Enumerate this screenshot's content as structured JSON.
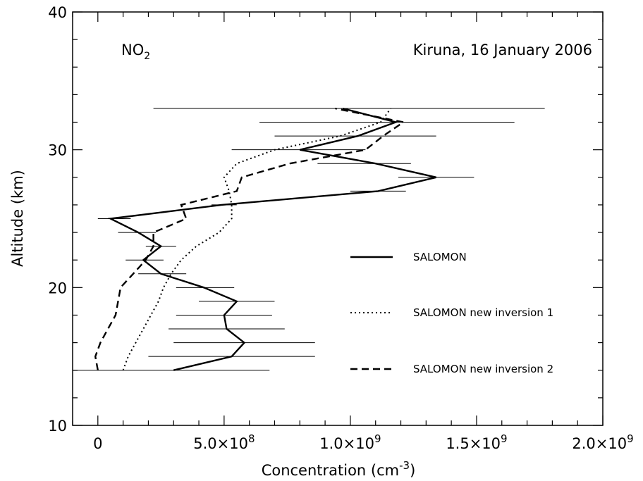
{
  "chart_data": {
    "type": "line",
    "title": "",
    "xlabel": "Concentration (cm",
    "xlabel_sup": "-3",
    "xlabel_close": ")",
    "ylabel": "Altitude (km)",
    "xlim": [
      -100000000,
      2000000000
    ],
    "ylim": [
      10,
      40
    ],
    "x_ticks": [
      {
        "value": 0,
        "label": "0"
      },
      {
        "value": 500000000,
        "mant": "5.0×10",
        "exp": "8"
      },
      {
        "value": 1000000000,
        "mant": "1.0×10",
        "exp": "9"
      },
      {
        "value": 1500000000,
        "mant": "1.5×10",
        "exp": "9"
      },
      {
        "value": 2000000000,
        "mant": "2.0×10",
        "exp": "9"
      }
    ],
    "y_ticks": [
      10,
      20,
      30,
      40
    ],
    "annotations": {
      "species": "NO",
      "species_sub": "2",
      "site": "Kiruna, 16 January 2006"
    },
    "legend": {
      "placement": "right",
      "entries": [
        {
          "name": "SALOMON",
          "style": "solid"
        },
        {
          "name": "SALOMON new inversion 1",
          "style": "dotted"
        },
        {
          "name": "SALOMON new inversion 2",
          "style": "dashed"
        }
      ]
    },
    "series": [
      {
        "name": "SALOMON",
        "style": "solid",
        "error_bars": true,
        "points": [
          {
            "y": 14,
            "x": 300000000,
            "xmin": -100000000,
            "xmax": 680000000
          },
          {
            "y": 15,
            "x": 530000000,
            "xmin": 200000000,
            "xmax": 860000000
          },
          {
            "y": 16,
            "x": 580000000,
            "xmin": 300000000,
            "xmax": 860000000
          },
          {
            "y": 17,
            "x": 510000000,
            "xmin": 280000000,
            "xmax": 740000000
          },
          {
            "y": 18,
            "x": 500000000,
            "xmin": 310000000,
            "xmax": 690000000
          },
          {
            "y": 19,
            "x": 550000000,
            "xmin": 400000000,
            "xmax": 700000000
          },
          {
            "y": 20,
            "x": 420000000,
            "xmin": 310000000,
            "xmax": 540000000
          },
          {
            "y": 21,
            "x": 250000000,
            "xmin": 160000000,
            "xmax": 350000000
          },
          {
            "y": 22,
            "x": 180000000,
            "xmin": 110000000,
            "xmax": 260000000
          },
          {
            "y": 23,
            "x": 250000000,
            "xmin": 190000000,
            "xmax": 310000000
          },
          {
            "y": 24,
            "x": 160000000,
            "xmin": 80000000,
            "xmax": 230000000
          },
          {
            "y": 25,
            "x": 50000000,
            "xmin": 0,
            "xmax": 130000000
          },
          {
            "y": 26,
            "x": 490000000,
            "xmin": 450000000,
            "xmax": 550000000
          },
          {
            "y": 27,
            "x": 1110000000,
            "xmin": 1000000000,
            "xmax": 1220000000
          },
          {
            "y": 28,
            "x": 1340000000,
            "xmin": 1190000000,
            "xmax": 1490000000
          },
          {
            "y": 29,
            "x": 1100000000,
            "xmin": 870000000,
            "xmax": 1240000000
          },
          {
            "y": 30,
            "x": 800000000,
            "xmin": 530000000,
            "xmax": 1060000000
          },
          {
            "y": 31,
            "x": 1030000000,
            "xmin": 700000000,
            "xmax": 1340000000
          },
          {
            "y": 32,
            "x": 1180000000,
            "xmin": 640000000,
            "xmax": 1650000000
          },
          {
            "y": 33,
            "x": 970000000,
            "xmin": 220000000,
            "xmax": 1770000000
          }
        ]
      },
      {
        "name": "SALOMON new inversion 1",
        "style": "dotted",
        "points": [
          {
            "y": 14,
            "x": 100000000
          },
          {
            "y": 15,
            "x": 120000000
          },
          {
            "y": 16,
            "x": 150000000
          },
          {
            "y": 17,
            "x": 180000000
          },
          {
            "y": 18,
            "x": 210000000
          },
          {
            "y": 19,
            "x": 240000000
          },
          {
            "y": 20,
            "x": 260000000
          },
          {
            "y": 21,
            "x": 290000000
          },
          {
            "y": 22,
            "x": 330000000
          },
          {
            "y": 23,
            "x": 390000000
          },
          {
            "y": 24,
            "x": 480000000
          },
          {
            "y": 25,
            "x": 530000000
          },
          {
            "y": 26,
            "x": 530000000
          },
          {
            "y": 27,
            "x": 520000000
          },
          {
            "y": 28,
            "x": 500000000
          },
          {
            "y": 29,
            "x": 550000000
          },
          {
            "y": 30,
            "x": 700000000
          },
          {
            "y": 31,
            "x": 960000000
          },
          {
            "y": 32,
            "x": 1120000000
          },
          {
            "y": 33,
            "x": 1160000000
          }
        ]
      },
      {
        "name": "SALOMON new inversion 2",
        "style": "dashed",
        "points": [
          {
            "y": 14,
            "x": 0
          },
          {
            "y": 15,
            "x": -10000000
          },
          {
            "y": 16,
            "x": 10000000
          },
          {
            "y": 17,
            "x": 40000000
          },
          {
            "y": 18,
            "x": 70000000
          },
          {
            "y": 19,
            "x": 80000000
          },
          {
            "y": 20,
            "x": 90000000
          },
          {
            "y": 21,
            "x": 140000000
          },
          {
            "y": 22,
            "x": 190000000
          },
          {
            "y": 23,
            "x": 220000000
          },
          {
            "y": 24,
            "x": 220000000
          },
          {
            "y": 25,
            "x": 350000000
          },
          {
            "y": 26,
            "x": 330000000
          },
          {
            "y": 27,
            "x": 550000000
          },
          {
            "y": 28,
            "x": 570000000
          },
          {
            "y": 29,
            "x": 760000000
          },
          {
            "y": 30,
            "x": 1060000000
          },
          {
            "y": 31,
            "x": 1130000000
          },
          {
            "y": 32,
            "x": 1210000000
          },
          {
            "y": 33,
            "x": 940000000
          }
        ]
      }
    ]
  }
}
